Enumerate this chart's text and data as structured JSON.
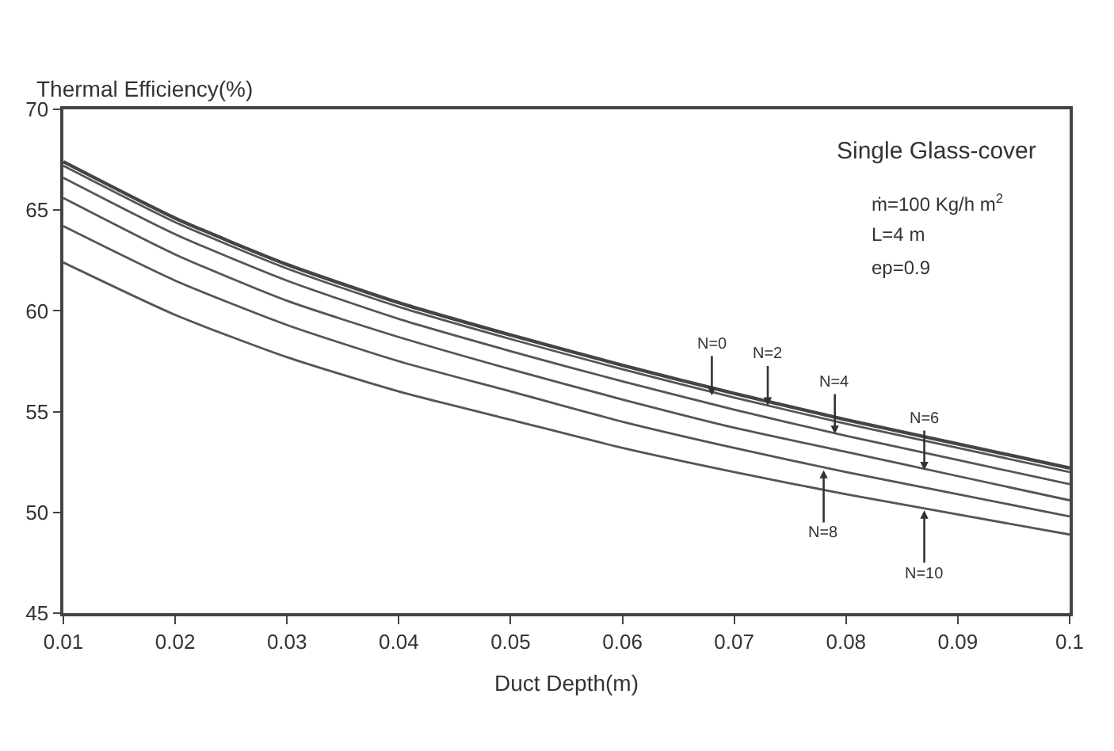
{
  "chart_data": {
    "type": "line",
    "xlabel": "Duct Depth(m)",
    "ylabel": "Thermal Efficiency(%)",
    "x": [
      0.01,
      0.02,
      0.03,
      0.04,
      0.05,
      0.06,
      0.07,
      0.08,
      0.09,
      0.1
    ],
    "series": [
      {
        "color": "#444444",
        "values": [
          67.4,
          64.6,
          62.3,
          60.4,
          58.8,
          57.3,
          55.9,
          54.6,
          53.4,
          52.2
        ]
      },
      {
        "color": "#555555",
        "values": [
          67.2,
          64.4,
          62.1,
          60.2,
          58.6,
          57.1,
          55.7,
          54.4,
          53.2,
          52.0
        ]
      },
      {
        "color": "#555555",
        "values": [
          66.6,
          63.8,
          61.5,
          59.6,
          58.0,
          56.5,
          55.1,
          53.8,
          52.6,
          51.4
        ]
      },
      {
        "color": "#555555",
        "values": [
          65.6,
          62.8,
          60.5,
          58.7,
          57.1,
          55.6,
          54.2,
          53.0,
          51.8,
          50.6
        ]
      },
      {
        "color": "#555555",
        "values": [
          64.2,
          61.5,
          59.3,
          57.5,
          56.0,
          54.5,
          53.2,
          52.0,
          50.9,
          49.8
        ]
      },
      {
        "color": "#555555",
        "values": [
          62.4,
          59.8,
          57.7,
          56.0,
          54.6,
          53.2,
          52.0,
          50.9,
          49.9,
          48.9
        ]
      }
    ],
    "xlim": [
      0.01,
      0.1
    ],
    "xticks": [
      0.01,
      0.02,
      0.03,
      0.04,
      0.05,
      0.06,
      0.07,
      0.08,
      0.09,
      0.1
    ],
    "ylim": [
      45,
      70
    ],
    "yticks": [
      45,
      50,
      55,
      60,
      65,
      70
    ],
    "marker": "none",
    "line_style": "solid",
    "annotations": [
      "Single Glass-cover",
      "ṁ=100 Kg/h m$^{2}$",
      "L=4 m",
      "ep=0.9",
      {
        "text": "N=0",
        "x": 0.068,
        "y": 55.8
      },
      {
        "text": "N=2",
        "x": 0.073,
        "y": 55.3
      },
      {
        "text": "N=4",
        "x": 0.079,
        "y": 53.9
      },
      {
        "text": "N=6",
        "x": 0.087,
        "y": 52.1
      },
      {
        "text": "N=8",
        "x": 0.078,
        "y": 52.1
      },
      {
        "text": "N=10",
        "x": 0.087,
        "y": 50.1
      }
    ]
  }
}
